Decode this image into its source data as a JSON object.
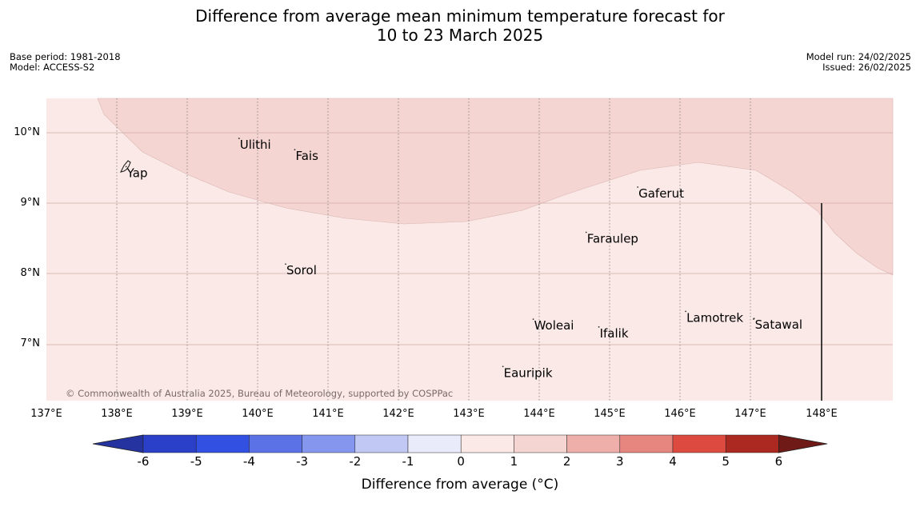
{
  "title_line1": "Difference from average mean minimum temperature forecast for",
  "title_line2": "10 to 23 March 2025",
  "base_period": "Base period: 1981-2018",
  "model": "Model: ACCESS-S2",
  "model_run": "Model run: 24/02/2025",
  "issued": "Issued: 26/02/2025",
  "copyright": "© Commonwealth of Australia 2025, Bureau of Meteorology, supported by COSPPac",
  "lat_labels": [
    "10°N",
    "9°N",
    "8°N",
    "7°N"
  ],
  "lon_labels": [
    "137°E",
    "138°E",
    "139°E",
    "140°E",
    "141°E",
    "142°E",
    "143°E",
    "144°E",
    "145°E",
    "146°E",
    "147°E",
    "148°E"
  ],
  "places": [
    {
      "name": "Ulithi",
      "lon": 139.73,
      "lat": 9.92
    },
    {
      "name": "Fais",
      "lon": 140.52,
      "lat": 9.76
    },
    {
      "name": "Yap",
      "lon": 138.13,
      "lat": 9.52
    },
    {
      "name": "Gaferut",
      "lon": 145.38,
      "lat": 9.23
    },
    {
      "name": "Faraulep",
      "lon": 144.65,
      "lat": 8.59
    },
    {
      "name": "Sorol",
      "lon": 140.39,
      "lat": 8.14
    },
    {
      "name": "Lamotrek",
      "lon": 146.06,
      "lat": 7.47
    },
    {
      "name": "Woleai",
      "lon": 143.9,
      "lat": 7.36
    },
    {
      "name": "Ifalik",
      "lon": 144.83,
      "lat": 7.25
    },
    {
      "name": "Satawal",
      "lon": 147.03,
      "lat": 7.37
    },
    {
      "name": "Eauripik",
      "lon": 143.47,
      "lat": 6.69
    }
  ],
  "map_colors": {
    "band_0_1": "#fbe9e7",
    "band_1_2": "#f5d5d2"
  },
  "colorbar": {
    "ticks": [
      "-6",
      "-5",
      "-4",
      "-3",
      "-2",
      "-1",
      "0",
      "1",
      "2",
      "3",
      "4",
      "5",
      "6"
    ],
    "colors": [
      "#2433a0",
      "#2b40c9",
      "#3250e2",
      "#5b72e6",
      "#8596ee",
      "#c1c8f4",
      "#e9ebfb",
      "#fbe9e7",
      "#f5d5d2",
      "#eeaea9",
      "#e7867f",
      "#dc4a40",
      "#ab2921",
      "#6f1a17"
    ],
    "label": "Difference from average (°C)"
  }
}
